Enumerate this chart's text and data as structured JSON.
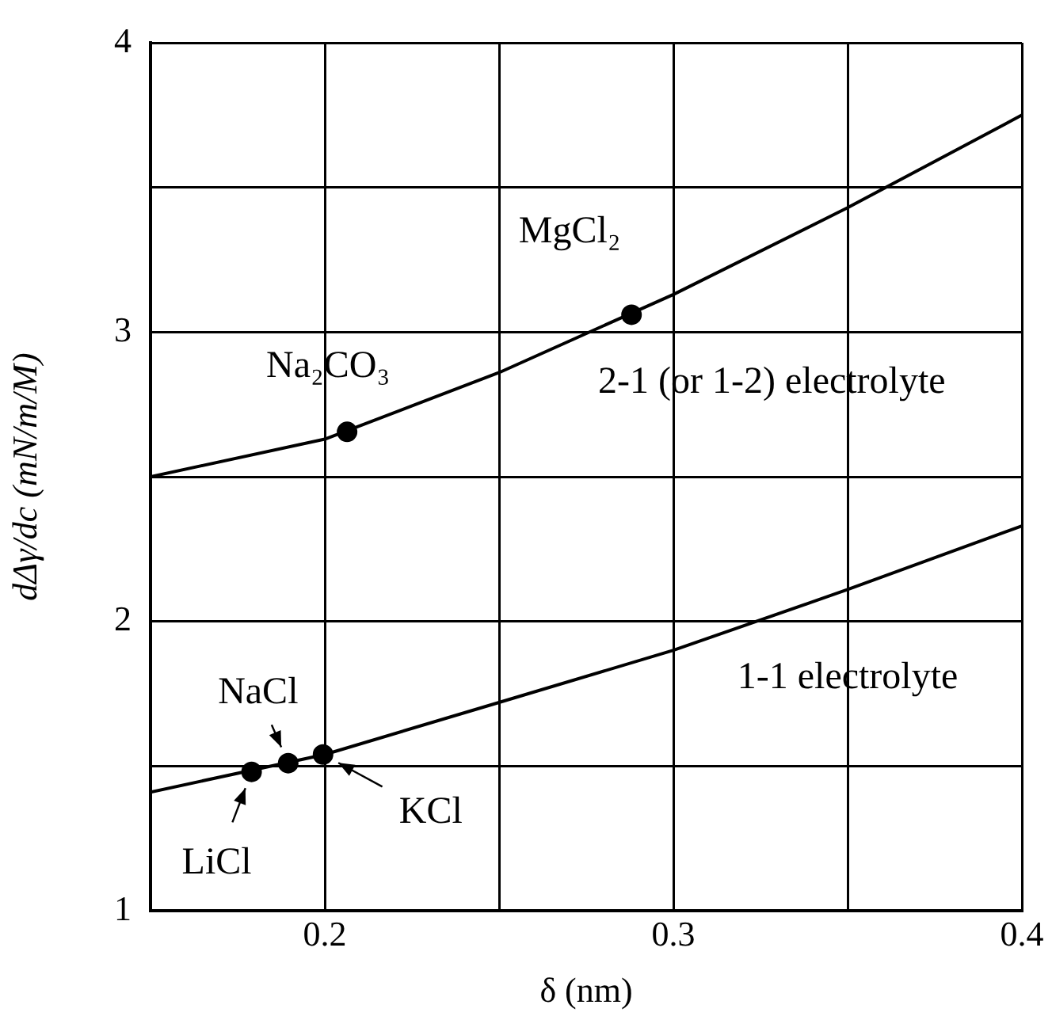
{
  "chart_data": {
    "type": "line",
    "xlabel": "δ (nm)",
    "ylabel": "dΔγ/dc (mN/m/M)",
    "xlim": [
      0.15,
      0.4
    ],
    "xticks": [
      {
        "value": 0.15,
        "label": null
      },
      0.2,
      {
        "value": 0.25,
        "label": null
      },
      0.3,
      {
        "value": 0.35,
        "label": null
      },
      0.4
    ],
    "ylim": [
      1,
      4
    ],
    "yticks": [
      1,
      {
        "value": 1.5,
        "label": null
      },
      2,
      {
        "value": 2.5,
        "label": null
      },
      3,
      {
        "value": 3.5,
        "label": null
      },
      4
    ],
    "grid": true,
    "legend": false,
    "series": [
      {
        "color": "#000000",
        "marker": "none",
        "x": [
          0.15,
          0.2,
          0.25,
          0.3,
          0.35,
          0.4
        ],
        "values": [
          2.5,
          2.63,
          2.86,
          3.13,
          3.43,
          3.75
        ]
      },
      {
        "color": "#000000",
        "marker": "none",
        "x": [
          0.15,
          0.2,
          0.25,
          0.3,
          0.35,
          0.4
        ],
        "values": [
          1.41,
          1.54,
          1.72,
          1.9,
          2.11,
          2.33
        ]
      },
      {
        "type": "scatter",
        "color": "#000000",
        "marker": "circle",
        "x": [
          0.179,
          0.1895,
          0.1995,
          0.2064,
          0.288
        ],
        "values": [
          1.48,
          1.51,
          1.54,
          2.655,
          3.06
        ]
      }
    ],
    "annotations": [
      "LiCl",
      "NaCl",
      "KCl",
      "Na₂CO₃",
      "MgCl₂",
      "2-1 (or 1-2) electrolyte",
      "1-1 electrolyte"
    ]
  }
}
